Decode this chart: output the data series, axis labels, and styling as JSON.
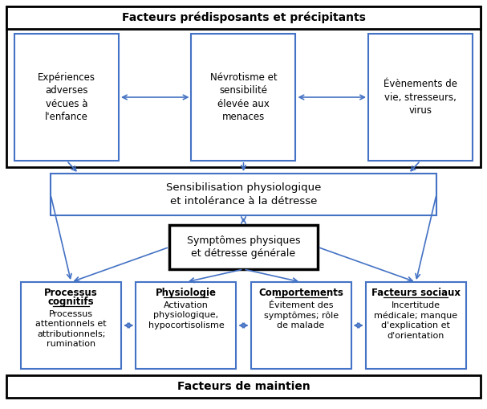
{
  "background_color": "#ffffff",
  "box_edge_color": "#4472C4",
  "text_color": "#000000",
  "outer_border_color": "#000000",
  "arrow_color": "#4472C4",
  "top_banner": "Facteurs prédisposants et précipitants",
  "bottom_banner": "Facteurs de maintien",
  "box1_text": "Expériences\nadverses\nvécues à\nl'enfance",
  "box2_text": "Névrotisme et\nsensibilité\nélevée aux\nmenaces",
  "box3_text": "Évènements de\nvie, stresseurs,\nvirus",
  "mid_box_text": "Sensibilisation physiologique\net intolérance à la détresse",
  "center_box_text": "Symptômes physiques\net détresse générale",
  "bot1_title": "Processus\ncognitifs",
  "bot1_body": "Processus\nattentionnels et\nattributionnels;\nrumination",
  "bot2_title": "Physiologie",
  "bot2_body": "Activation\nphysiologique,\nhypocortisolisme",
  "bot3_title": "Comportements",
  "bot3_body": "Évitement des\nsymptômes; rôle\nde malade",
  "bot4_title": "Facteurs sociaux",
  "bot4_body": "Incertitude\nmédicale; manque\nd'explication et\nd'orientation"
}
